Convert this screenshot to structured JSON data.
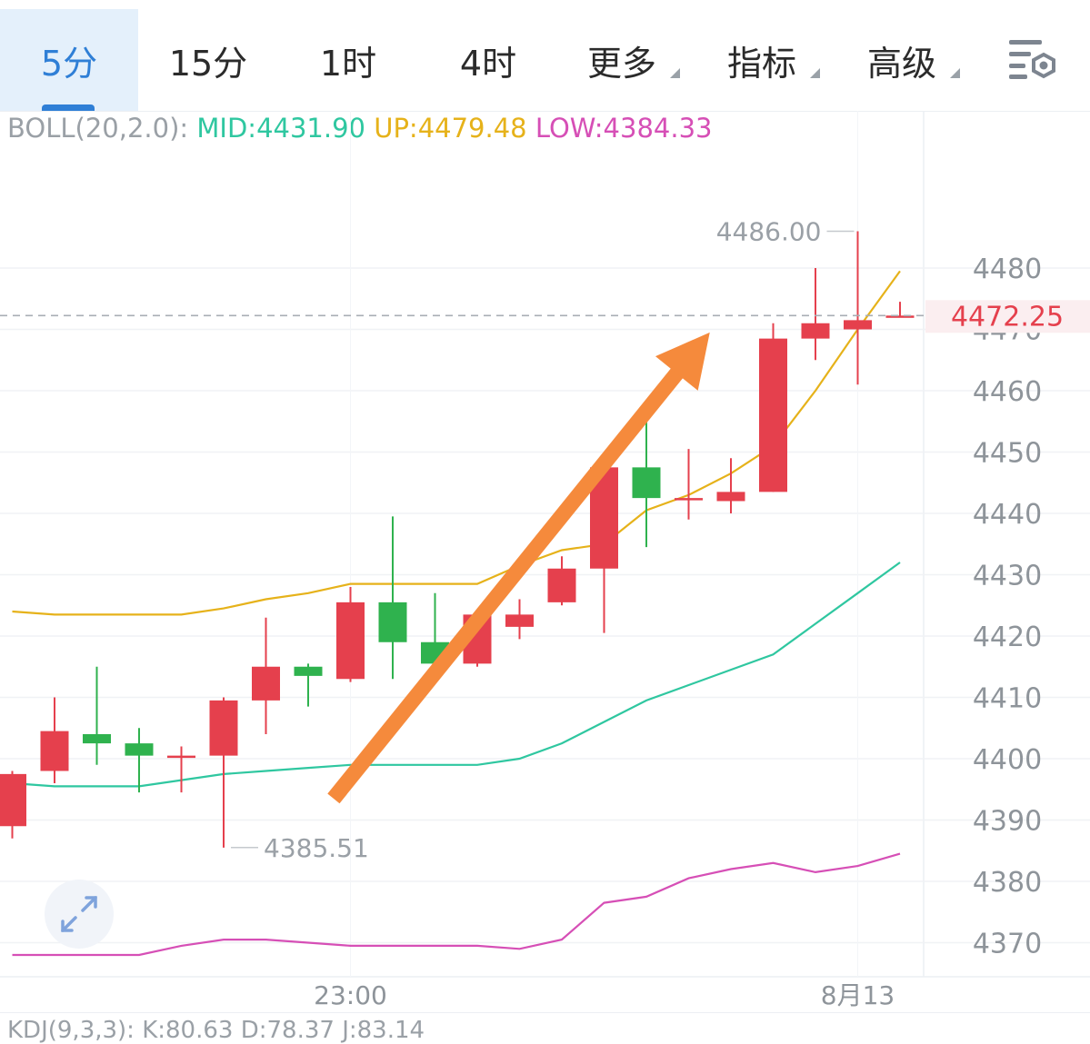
{
  "tabs": [
    {
      "label": "5分",
      "active": true
    },
    {
      "label": "15分"
    },
    {
      "label": "1时"
    },
    {
      "label": "4时"
    },
    {
      "label": "更多",
      "dropdown": true
    },
    {
      "label": "指标",
      "dropdown": true
    },
    {
      "label": "高级",
      "dropdown": true
    }
  ],
  "toolbar_icon": "settings-list-icon",
  "expand_icon": "expand-arrows-icon",
  "legend": {
    "name": "BOLL(20,2.0):",
    "mid": "MID:4431.90",
    "up": "UP:4479.48",
    "low": "LOW:4384.33"
  },
  "bottom_indicator_text": "KDJ(9,3,3): K:80.63 D:78.37 J:83.14",
  "chart_data": {
    "type": "candlestick",
    "title": "",
    "colors": {
      "up": "#e5404d",
      "down": "#2fb24e",
      "mid": "#2fc7a0",
      "upper": "#e6b21a",
      "lower": "#d64fb6",
      "arrow": "#f58a3c",
      "current_price": "#e5404d"
    },
    "y_ticks": [
      4370,
      4380,
      4390,
      4400,
      4410,
      4420,
      4430,
      4440,
      4450,
      4460,
      4470,
      4480
    ],
    "x_labels": [
      {
        "index": 8,
        "label": "23:00"
      },
      {
        "index": 20,
        "label": "8月13"
      }
    ],
    "current_price": "4472.25",
    "max_annotation": {
      "index": 20,
      "value": "4486.00"
    },
    "min_annotation": {
      "index": 5,
      "value": "4385.51"
    },
    "candles": [
      {
        "open": 4389,
        "close": 4397.5,
        "high": 4398,
        "low": 4387
      },
      {
        "open": 4398,
        "close": 4404.5,
        "high": 4410,
        "low": 4396
      },
      {
        "open": 4404,
        "close": 4402.5,
        "high": 4415,
        "low": 4399
      },
      {
        "open": 4402.5,
        "close": 4400.5,
        "high": 4405,
        "low": 4394.5
      },
      {
        "open": 4400.5,
        "close": 4400.5,
        "high": 4402,
        "low": 4394.5
      },
      {
        "open": 4400.5,
        "close": 4409.5,
        "high": 4410,
        "low": 4385.5
      },
      {
        "open": 4409.5,
        "close": 4415,
        "high": 4423,
        "low": 4404
      },
      {
        "open": 4415,
        "close": 4413.5,
        "high": 4415.5,
        "low": 4408.5
      },
      {
        "open": 4413,
        "close": 4425.5,
        "high": 4428,
        "low": 4412.5
      },
      {
        "open": 4425.5,
        "close": 4419,
        "high": 4439.5,
        "low": 4413
      },
      {
        "open": 4419,
        "close": 4415.5,
        "high": 4427,
        "low": 4415
      },
      {
        "open": 4415.5,
        "close": 4423.5,
        "high": 4424,
        "low": 4415
      },
      {
        "open": 4421.5,
        "close": 4423.5,
        "high": 4426,
        "low": 4419.5
      },
      {
        "open": 4425.5,
        "close": 4431,
        "high": 4433,
        "low": 4425
      },
      {
        "open": 4431,
        "close": 4447.5,
        "high": 4448,
        "low": 4420.5
      },
      {
        "open": 4447.5,
        "close": 4442.5,
        "high": 4456,
        "low": 4434.5
      },
      {
        "open": 4442.5,
        "close": 4442.5,
        "high": 4450.5,
        "low": 4439
      },
      {
        "open": 4442,
        "close": 4443.5,
        "high": 4449,
        "low": 4440
      },
      {
        "open": 4443.5,
        "close": 4468.5,
        "high": 4471,
        "low": 4443.5
      },
      {
        "open": 4468.5,
        "close": 4471,
        "high": 4480,
        "low": 4465
      },
      {
        "open": 4470,
        "close": 4471.5,
        "high": 4486,
        "low": 4461
      },
      {
        "open": 4472.25,
        "close": 4472.25,
        "high": 4474.5,
        "low": 4472
      }
    ],
    "mid": [
      4396,
      4395.5,
      4395.5,
      4395.5,
      4396.5,
      4397.5,
      4398,
      4398.5,
      4399,
      4399,
      4399,
      4399,
      4400,
      4402.5,
      4406,
      4409.5,
      4412,
      4414.5,
      4417,
      4422,
      4427,
      4432
    ],
    "upper": [
      4424,
      4423.5,
      4423.5,
      4423.5,
      4423.5,
      4424.5,
      4426,
      4427,
      4428.5,
      4428.5,
      4428.5,
      4428.5,
      4431.5,
      4434,
      4435,
      4440.5,
      4443,
      4446.5,
      4451,
      4460,
      4470,
      4479.5
    ],
    "lower": [
      4368,
      4368,
      4368,
      4368,
      4369.5,
      4370.5,
      4370.5,
      4370,
      4369.5,
      4369.5,
      4369.5,
      4369.5,
      4369,
      4370.5,
      4376.5,
      4377.5,
      4380.5,
      4382,
      4383,
      4381.5,
      4382.5,
      4384.5
    ],
    "arrow": {
      "from": {
        "index": 7.6,
        "value": 4393.5
      },
      "to": {
        "index": 16.5,
        "value": 4469.5
      }
    }
  }
}
